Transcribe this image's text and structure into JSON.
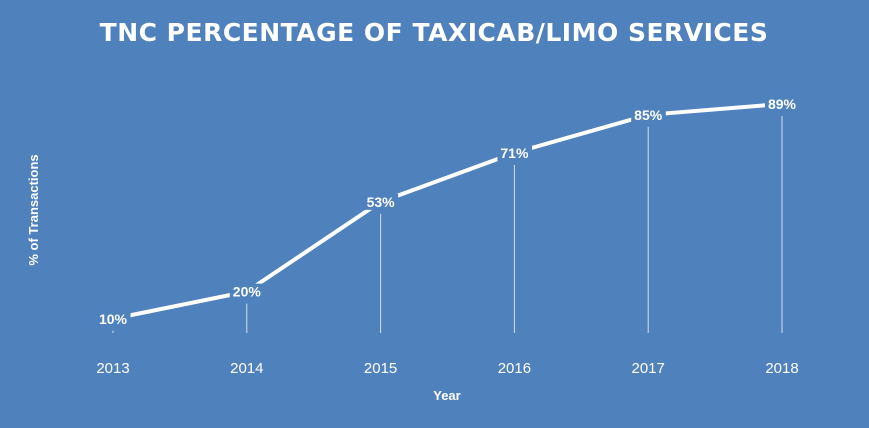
{
  "chart_data": {
    "type": "line",
    "title": "TNC PERCENTAGE OF TAXICAB/LIMO SERVICES",
    "xlabel": "Year",
    "ylabel": "% of Transactions",
    "categories": [
      "2013",
      "2014",
      "2015",
      "2016",
      "2017",
      "2018"
    ],
    "values": [
      10,
      20,
      53,
      71,
      85,
      89
    ],
    "data_labels": [
      "10%",
      "20%",
      "53%",
      "71%",
      "85%",
      "89%"
    ],
    "ylim": [
      0,
      100
    ],
    "grid": false,
    "legend": "none",
    "drop_lines": true,
    "colors": {
      "background": "#4f81bd",
      "line": "#ffffff",
      "text": "#ffffff"
    }
  }
}
